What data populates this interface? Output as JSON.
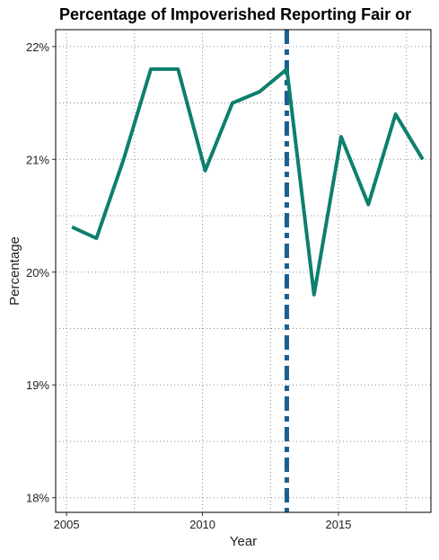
{
  "chart_data": {
    "type": "line",
    "title": "Percentage of Impoverished Reporting Fair or",
    "xlabel": "Year",
    "ylabel": "Percentage",
    "x": [
      2005.2,
      2006.1,
      2007.1,
      2008.1,
      2009.1,
      2010.1,
      2011.1,
      2012.1,
      2013.1,
      2014.1,
      2015.1,
      2016.1,
      2017.1,
      2018.1
    ],
    "series": [
      {
        "name": "",
        "values": [
          20.4,
          20.3,
          21.0,
          21.8,
          21.8,
          20.9,
          21.5,
          21.6,
          21.8,
          19.8,
          21.2,
          20.6,
          21.4,
          21.0
        ]
      }
    ],
    "vline": {
      "x": 2013.1
    },
    "xlim": [
      2004.6,
      2018.4
    ],
    "ylim": [
      17.87,
      22.15
    ],
    "x_ticks": [
      2005,
      2010,
      2015
    ],
    "x_tick_labels": [
      "2005",
      "2010",
      "2015"
    ],
    "y_ticks": [
      18,
      19,
      20,
      21,
      22
    ],
    "y_tick_labels": [
      "18%",
      "19%",
      "20%",
      "21%",
      "22%"
    ],
    "grid": true,
    "colors": {
      "line": "#0e7f6e",
      "vline": "#1a5f94",
      "grid": "#8a8a8a"
    }
  }
}
